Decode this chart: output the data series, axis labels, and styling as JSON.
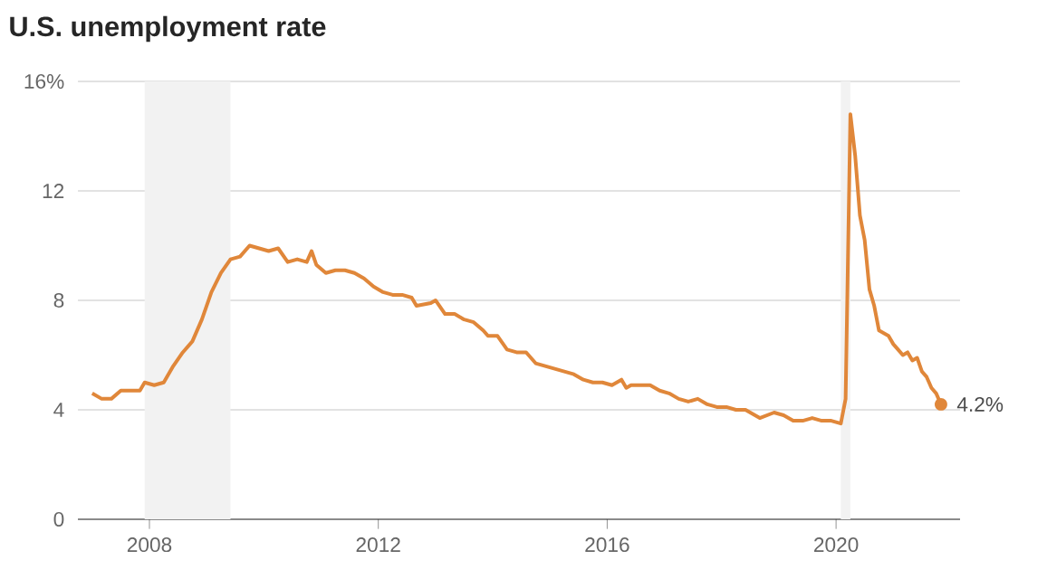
{
  "chart_data": {
    "type": "line",
    "title": "U.S. unemployment rate",
    "x": [
      "2007-01",
      "2007-03",
      "2007-05",
      "2007-07",
      "2007-09",
      "2007-11",
      "2007-12",
      "2008-02",
      "2008-04",
      "2008-06",
      "2008-08",
      "2008-10",
      "2008-12",
      "2009-02",
      "2009-04",
      "2009-06",
      "2009-08",
      "2009-10",
      "2009-12",
      "2010-02",
      "2010-04",
      "2010-06",
      "2010-08",
      "2010-10",
      "2010-11",
      "2010-12",
      "2011-02",
      "2011-04",
      "2011-06",
      "2011-08",
      "2011-10",
      "2011-12",
      "2012-02",
      "2012-04",
      "2012-06",
      "2012-08",
      "2012-09",
      "2012-12",
      "2013-01",
      "2013-03",
      "2013-05",
      "2013-07",
      "2013-09",
      "2013-11",
      "2013-12",
      "2014-02",
      "2014-04",
      "2014-06",
      "2014-08",
      "2014-10",
      "2014-12",
      "2015-02",
      "2015-04",
      "2015-06",
      "2015-08",
      "2015-10",
      "2015-12",
      "2016-02",
      "2016-04",
      "2016-05",
      "2016-06",
      "2016-08",
      "2016-10",
      "2016-12",
      "2017-02",
      "2017-04",
      "2017-06",
      "2017-08",
      "2017-10",
      "2017-12",
      "2018-02",
      "2018-04",
      "2018-06",
      "2018-08",
      "2018-09",
      "2018-12",
      "2019-02",
      "2019-04",
      "2019-06",
      "2019-08",
      "2019-10",
      "2019-12",
      "2020-02",
      "2020-03",
      "2020-04",
      "2020-05",
      "2020-06",
      "2020-07",
      "2020-08",
      "2020-09",
      "2020-10",
      "2020-12",
      "2021-01",
      "2021-02",
      "2021-03",
      "2021-04",
      "2021-05",
      "2021-06",
      "2021-07",
      "2021-08",
      "2021-09",
      "2021-10",
      "2021-11"
    ],
    "values": [
      4.6,
      4.4,
      4.4,
      4.7,
      4.7,
      4.7,
      5.0,
      4.9,
      5.0,
      5.6,
      6.1,
      6.5,
      7.3,
      8.3,
      9.0,
      9.5,
      9.6,
      10.0,
      9.9,
      9.8,
      9.9,
      9.4,
      9.5,
      9.4,
      9.8,
      9.3,
      9.0,
      9.1,
      9.1,
      9.0,
      8.8,
      8.5,
      8.3,
      8.2,
      8.2,
      8.1,
      7.8,
      7.9,
      8.0,
      7.5,
      7.5,
      7.3,
      7.2,
      6.9,
      6.7,
      6.7,
      6.2,
      6.1,
      6.1,
      5.7,
      5.6,
      5.5,
      5.4,
      5.3,
      5.1,
      5.0,
      5.0,
      4.9,
      5.1,
      4.8,
      4.9,
      4.9,
      4.9,
      4.7,
      4.6,
      4.4,
      4.3,
      4.4,
      4.2,
      4.1,
      4.1,
      4.0,
      4.0,
      3.8,
      3.7,
      3.9,
      3.8,
      3.6,
      3.6,
      3.7,
      3.6,
      3.6,
      3.5,
      4.4,
      14.8,
      13.3,
      11.1,
      10.2,
      8.4,
      7.8,
      6.9,
      6.7,
      6.4,
      6.2,
      6.0,
      6.1,
      5.8,
      5.9,
      5.4,
      5.2,
      4.8,
      4.6,
      4.2
    ],
    "color": "#e0873a",
    "xlim": [
      "2006-10",
      "2022-03"
    ],
    "xticks": [
      "2008",
      "2012",
      "2016",
      "2020"
    ],
    "ylim": [
      0,
      16
    ],
    "yticks": [
      0,
      4,
      8,
      12,
      {
        "value": 16,
        "label": "16%"
      }
    ],
    "grid": "y",
    "bands": [
      {
        "axis": "x",
        "from": "2007-12",
        "to": "2009-06",
        "color": "#f2f2f2"
      },
      {
        "axis": "x",
        "from": "2020-02",
        "to": "2020-04",
        "color": "#f2f2f2"
      }
    ],
    "annotations": [
      {
        "text": "4.2%",
        "x": "2021-11",
        "y": 4.2
      }
    ]
  }
}
